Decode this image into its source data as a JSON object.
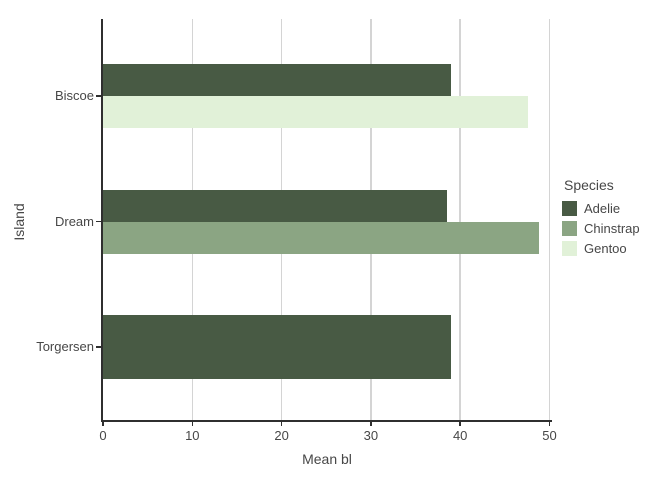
{
  "chart_data": {
    "type": "bar",
    "orientation": "horizontal",
    "title": "",
    "xlabel": "Mean bl",
    "ylabel": "Island",
    "xlim": [
      0,
      50
    ],
    "xticks": [
      0,
      10,
      20,
      30,
      40,
      50
    ],
    "categories": [
      "Biscoe",
      "Dream",
      "Torgersen"
    ],
    "series": [
      {
        "name": "Adelie",
        "color": "#485A44",
        "values": {
          "Biscoe": 38.98,
          "Dream": 38.5,
          "Torgersen": 38.95
        }
      },
      {
        "name": "Chinstrap",
        "color": "#8BA583",
        "values": {
          "Dream": 48.83
        }
      },
      {
        "name": "Gentoo",
        "color": "#E1F1D8",
        "values": {
          "Biscoe": 47.57
        }
      }
    ],
    "legend": {
      "title": "Species",
      "position": "right"
    },
    "grid": "vertical-major-only"
  },
  "colors": {
    "grid": "#d4d4d4",
    "axis": "#2f2f2f",
    "text": "#474747",
    "background": "#ffffff"
  }
}
